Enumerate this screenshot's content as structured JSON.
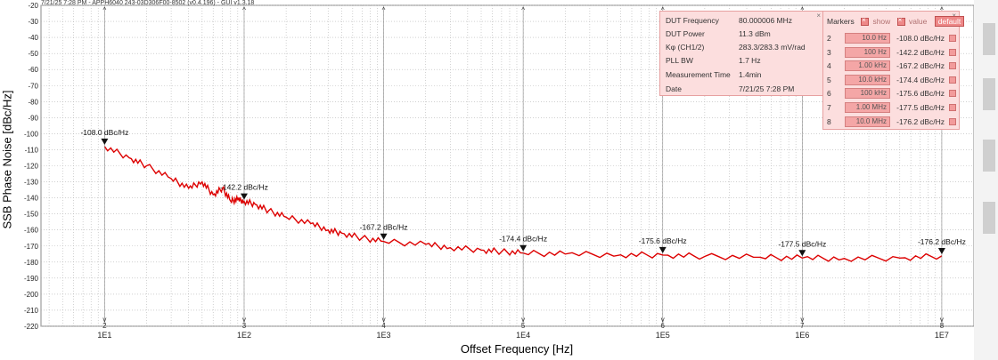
{
  "window": {
    "title": "7/21/25 7:28 PM - APPH6040 243-03D306F00-8502 (v0.4.196) - GUI v1.3.18"
  },
  "colors": {
    "trace": "#dd0000",
    "panel_bg": "#fcdede",
    "grid": "#b5b5b5"
  },
  "info_panel": {
    "close_icon": "close-icon",
    "rows": [
      {
        "key": "DUT Frequency",
        "value": "80.000006 MHz"
      },
      {
        "key": "DUT Power",
        "value": "11.3 dBm"
      },
      {
        "key": "Kφ (CH1/2)",
        "value": "283.3/283.3 mV/rad"
      },
      {
        "key": "PLL BW",
        "value": "1.7 Hz"
      },
      {
        "key": "Measurement Time",
        "value": "1.4min"
      },
      {
        "key": "Date",
        "value": "7/21/25 7:28 PM"
      }
    ]
  },
  "markers_panel": {
    "title": "Markers",
    "show_label": "show",
    "value_label": "value",
    "default_label": "default",
    "rows": [
      {
        "num": "2",
        "freq": "10.0 Hz",
        "value": "-108.0 dBc/Hz"
      },
      {
        "num": "3",
        "freq": "100 Hz",
        "value": "-142.2 dBc/Hz"
      },
      {
        "num": "4",
        "freq": "1.00 kHz",
        "value": "-167.2 dBc/Hz"
      },
      {
        "num": "5",
        "freq": "10.0 kHz",
        "value": "-174.4 dBc/Hz"
      },
      {
        "num": "6",
        "freq": "100 kHz",
        "value": "-175.6 dBc/Hz"
      },
      {
        "num": "7",
        "freq": "1.00 MHz",
        "value": "-177.5 dBc/Hz"
      },
      {
        "num": "8",
        "freq": "10.0 MHz",
        "value": "-176.2 dBc/Hz"
      }
    ]
  },
  "chart_data": {
    "type": "line",
    "xlabel": "Offset Frequency [Hz]",
    "ylabel": "SSB Phase Noise [dBc/Hz]",
    "x_scale": "log",
    "xlim": [
      3.5,
      17000000
    ],
    "ylim": [
      -220,
      -20
    ],
    "x_tick_labels": [
      "1E1",
      "1E2",
      "1E3",
      "1E4",
      "1E5",
      "1E6",
      "1E7"
    ],
    "x_tick_values": [
      10,
      100,
      1000,
      10000,
      100000,
      1000000,
      10000000
    ],
    "y_ticks": [
      -20,
      -30,
      -40,
      -50,
      -60,
      -70,
      -80,
      -90,
      -100,
      -110,
      -120,
      -130,
      -140,
      -150,
      -160,
      -170,
      -180,
      -190,
      -200,
      -210,
      -220
    ],
    "grid": true,
    "series": [
      {
        "x": [
          10,
          15,
          20,
          30,
          40,
          50,
          60,
          70,
          80,
          90,
          100,
          120,
          150,
          200,
          300,
          400,
          500,
          700,
          1000,
          2000,
          3000,
          5000,
          7000,
          10000,
          20000,
          50000,
          100000,
          200000,
          500000,
          1000000,
          2000000,
          5000000,
          10000000
        ],
        "y": [
          -108.0,
          -115.0,
          -120.0,
          -128.0,
          -134.0,
          -130.0,
          -138.0,
          -134.0,
          -142.0,
          -141.0,
          -142.2,
          -144.0,
          -148.0,
          -152.0,
          -156.0,
          -160.0,
          -162.0,
          -165.0,
          -167.2,
          -169.0,
          -171.0,
          -172.5,
          -173.5,
          -174.4,
          -175.0,
          -175.5,
          -175.6,
          -176.5,
          -177.0,
          -177.5,
          -177.8,
          -177.5,
          -176.2
        ]
      }
    ],
    "markers": [
      {
        "id": "2",
        "x": 10,
        "y": -108.0,
        "label": "-108.0 dBc/Hz"
      },
      {
        "id": "3",
        "x": 100,
        "y": -142.2,
        "label": "-142.2 dBc/Hz"
      },
      {
        "id": "4",
        "x": 1000,
        "y": -167.2,
        "label": "-167.2 dBc/Hz"
      },
      {
        "id": "5",
        "x": 10000,
        "y": -174.4,
        "label": "-174.4 dBc/Hz"
      },
      {
        "id": "6",
        "x": 100000,
        "y": -175.6,
        "label": "-175.6 dBc/Hz"
      },
      {
        "id": "7",
        "x": 1000000,
        "y": -177.5,
        "label": "-177.5 dBc/Hz"
      },
      {
        "id": "8",
        "x": 10000000,
        "y": -176.2,
        "label": "-176.2 dBc/Hz"
      }
    ]
  }
}
